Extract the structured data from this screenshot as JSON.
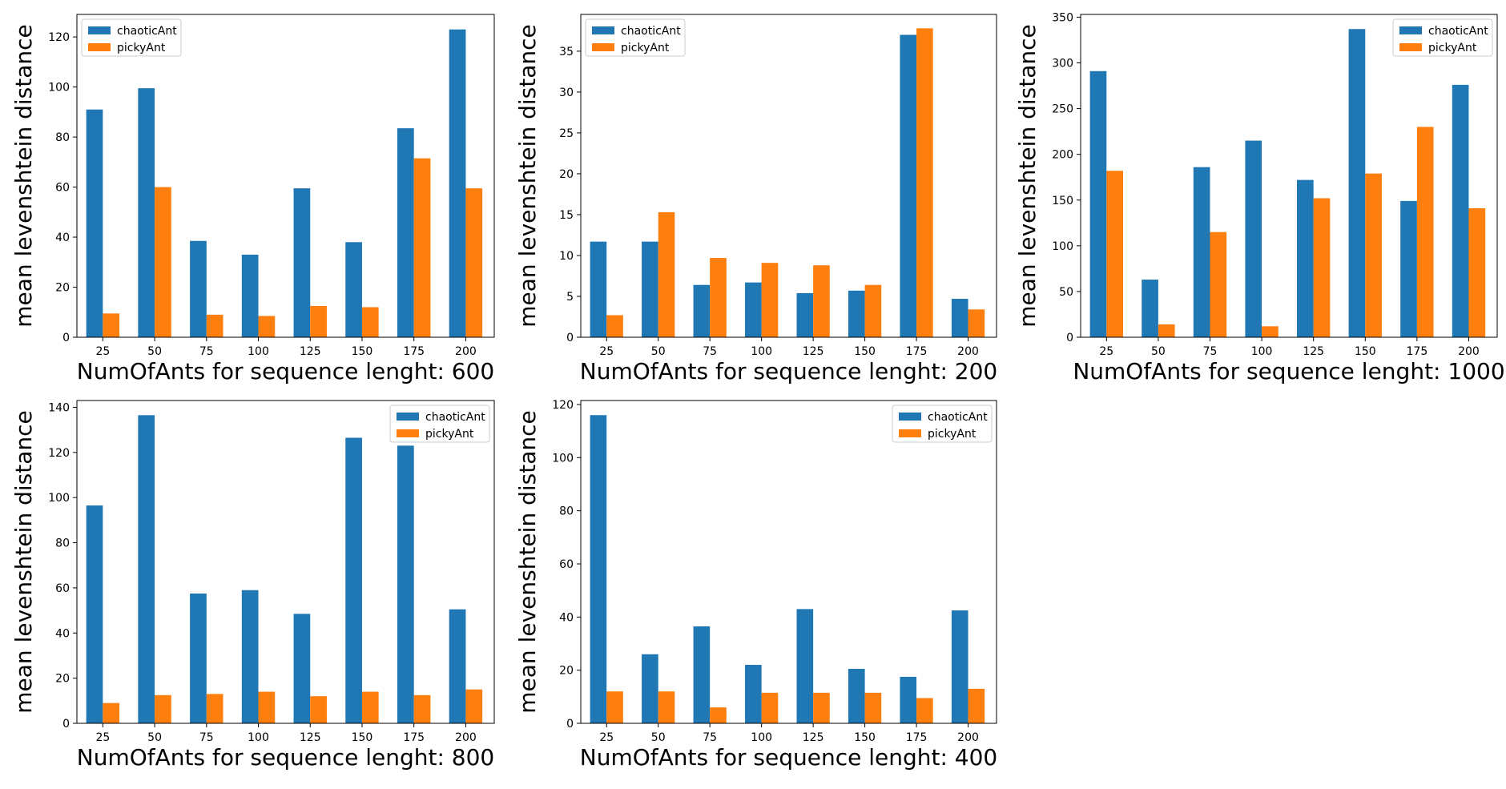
{
  "colors": {
    "chaoticAnt": "#1f77b4",
    "pickyAnt": "#ff7f0e"
  },
  "chart_data": [
    {
      "type": "bar",
      "categories": [
        "25",
        "50",
        "75",
        "100",
        "125",
        "150",
        "175",
        "200"
      ],
      "series": [
        {
          "name": "chaoticAnt",
          "values": [
            91,
            99.5,
            38.5,
            33,
            59.5,
            38,
            83.5,
            123
          ]
        },
        {
          "name": "pickyAnt",
          "values": [
            9.5,
            60,
            9,
            8.5,
            12.5,
            12,
            71.5,
            59.5
          ]
        }
      ],
      "xlabel": "NumOfAnts for sequence lenght: 600",
      "ylabel": "mean levenshtein distance",
      "ylim": [
        0,
        129
      ],
      "yticks": [
        0,
        20,
        40,
        60,
        80,
        100,
        120
      ],
      "legend": "top-left",
      "grid": false
    },
    {
      "type": "bar",
      "categories": [
        "25",
        "50",
        "75",
        "100",
        "125",
        "150",
        "175",
        "200"
      ],
      "series": [
        {
          "name": "chaoticAnt",
          "values": [
            11.7,
            11.7,
            6.4,
            6.7,
            5.4,
            5.7,
            37,
            4.7
          ]
        },
        {
          "name": "pickyAnt",
          "values": [
            2.7,
            15.3,
            9.7,
            9.1,
            8.8,
            6.4,
            37.8,
            3.4
          ]
        }
      ],
      "xlabel": "NumOfAnts for sequence lenght: 200",
      "ylabel": "mean levenshtein distance",
      "ylim": [
        0,
        39.5
      ],
      "yticks": [
        0,
        5,
        10,
        15,
        20,
        25,
        30,
        35
      ],
      "legend": "top-left",
      "grid": false
    },
    {
      "type": "bar",
      "categories": [
        "25",
        "50",
        "75",
        "100",
        "125",
        "150",
        "175",
        "200"
      ],
      "series": [
        {
          "name": "chaoticAnt",
          "values": [
            291,
            63,
            186,
            215,
            172,
            337,
            149,
            276
          ]
        },
        {
          "name": "pickyAnt",
          "values": [
            182,
            14,
            115,
            12,
            152,
            179,
            230,
            141
          ]
        }
      ],
      "xlabel": "NumOfAnts for sequence lenght: 1000",
      "ylabel": "mean levenshtein distance",
      "ylim": [
        0,
        353
      ],
      "yticks": [
        0,
        50,
        100,
        150,
        200,
        250,
        300,
        350
      ],
      "legend": "top-right",
      "grid": false
    },
    {
      "type": "bar",
      "categories": [
        "25",
        "50",
        "75",
        "100",
        "125",
        "150",
        "175",
        "200"
      ],
      "series": [
        {
          "name": "chaoticAnt",
          "values": [
            96.5,
            136.5,
            57.5,
            59,
            48.5,
            126.5,
            123,
            50.5
          ]
        },
        {
          "name": "pickyAnt",
          "values": [
            9,
            12.5,
            13,
            14,
            12,
            14,
            12.5,
            15
          ]
        }
      ],
      "xlabel": "NumOfAnts for sequence lenght: 800",
      "ylabel": "mean levenshtein distance",
      "ylim": [
        0,
        143
      ],
      "yticks": [
        0,
        20,
        40,
        60,
        80,
        100,
        120,
        140
      ],
      "legend": "top-right",
      "grid": false
    },
    {
      "type": "bar",
      "categories": [
        "25",
        "50",
        "75",
        "100",
        "125",
        "150",
        "175",
        "200"
      ],
      "series": [
        {
          "name": "chaoticAnt",
          "values": [
            116,
            26,
            36.5,
            22,
            43,
            20.5,
            17.5,
            42.5
          ]
        },
        {
          "name": "pickyAnt",
          "values": [
            12,
            12,
            6,
            11.5,
            11.5,
            11.5,
            9.5,
            13
          ]
        }
      ],
      "xlabel": "NumOfAnts for sequence lenght: 400",
      "ylabel": "mean levenshtein distance",
      "ylim": [
        0,
        121.5
      ],
      "yticks": [
        0,
        20,
        40,
        60,
        80,
        100,
        120
      ],
      "legend": "top-right",
      "grid": false
    }
  ]
}
